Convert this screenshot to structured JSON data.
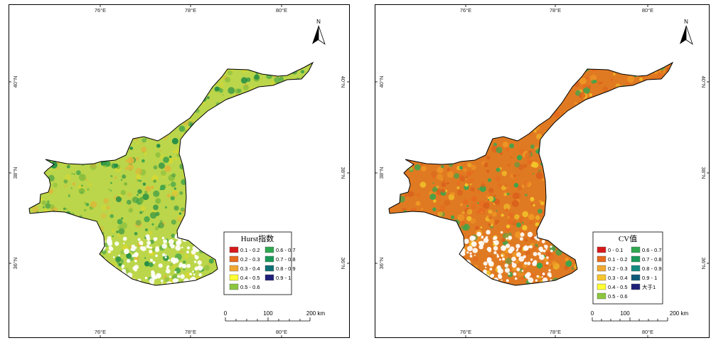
{
  "axes": {
    "lon_ticks": [
      "76°E",
      "78°E",
      "80°E"
    ],
    "lat_ticks": [
      "40°N",
      "38°N",
      "36°N"
    ]
  },
  "north_label": "N",
  "scale_bar": {
    "labels": [
      "0",
      "100",
      "200 km"
    ]
  },
  "maps": [
    {
      "id": "hurst",
      "palette": [
        "#7fb93b",
        "#3ea34a",
        "#d8d830",
        "#e2b438",
        "#1e8b45"
      ],
      "legend": {
        "title": "Hurst指数",
        "items": [
          {
            "label": "0.1 - 0.2",
            "color": "#d7191c"
          },
          {
            "label": "0.2 - 0.3",
            "color": "#e66a1f"
          },
          {
            "label": "0.3 - 0.4",
            "color": "#f0a830"
          },
          {
            "label": "0.4 - 0.5",
            "color": "#ffff33"
          },
          {
            "label": "0.5 - 0.6",
            "color": "#8cc63f"
          },
          {
            "label": "0.6 - 0.7",
            "color": "#2fa84f"
          },
          {
            "label": "0.7 - 0.8",
            "color": "#1a9a58"
          },
          {
            "label": "0.8 - 0.9",
            "color": "#0e6f74"
          },
          {
            "label": "0.9 - 1",
            "color": "#1f1f7a"
          }
        ]
      }
    },
    {
      "id": "cv",
      "palette": [
        "#e66a1f",
        "#f09a25",
        "#d9601c",
        "#f3c72a",
        "#2fa84f"
      ],
      "legend": {
        "title": "CV值",
        "items": [
          {
            "label": "0 - 0.1",
            "color": "#d7191c"
          },
          {
            "label": "0.1 - 0.2",
            "color": "#e66a1f"
          },
          {
            "label": "0.2 - 0.3",
            "color": "#f0a830"
          },
          {
            "label": "0.3 - 0.4",
            "color": "#f7c52b"
          },
          {
            "label": "0.4 - 0.5",
            "color": "#ffff33"
          },
          {
            "label": "0.5 - 0.6",
            "color": "#8cc63f"
          },
          {
            "label": "0.6 - 0.7",
            "color": "#2fa84f"
          },
          {
            "label": "0.7 - 0.8",
            "color": "#1a9a58"
          },
          {
            "label": "0.8 - 0.9",
            "color": "#138a80"
          },
          {
            "label": "0.9 - 1",
            "color": "#0e5a7a"
          },
          {
            "label": "大于1",
            "color": "#1f1f7a"
          }
        ]
      }
    }
  ]
}
